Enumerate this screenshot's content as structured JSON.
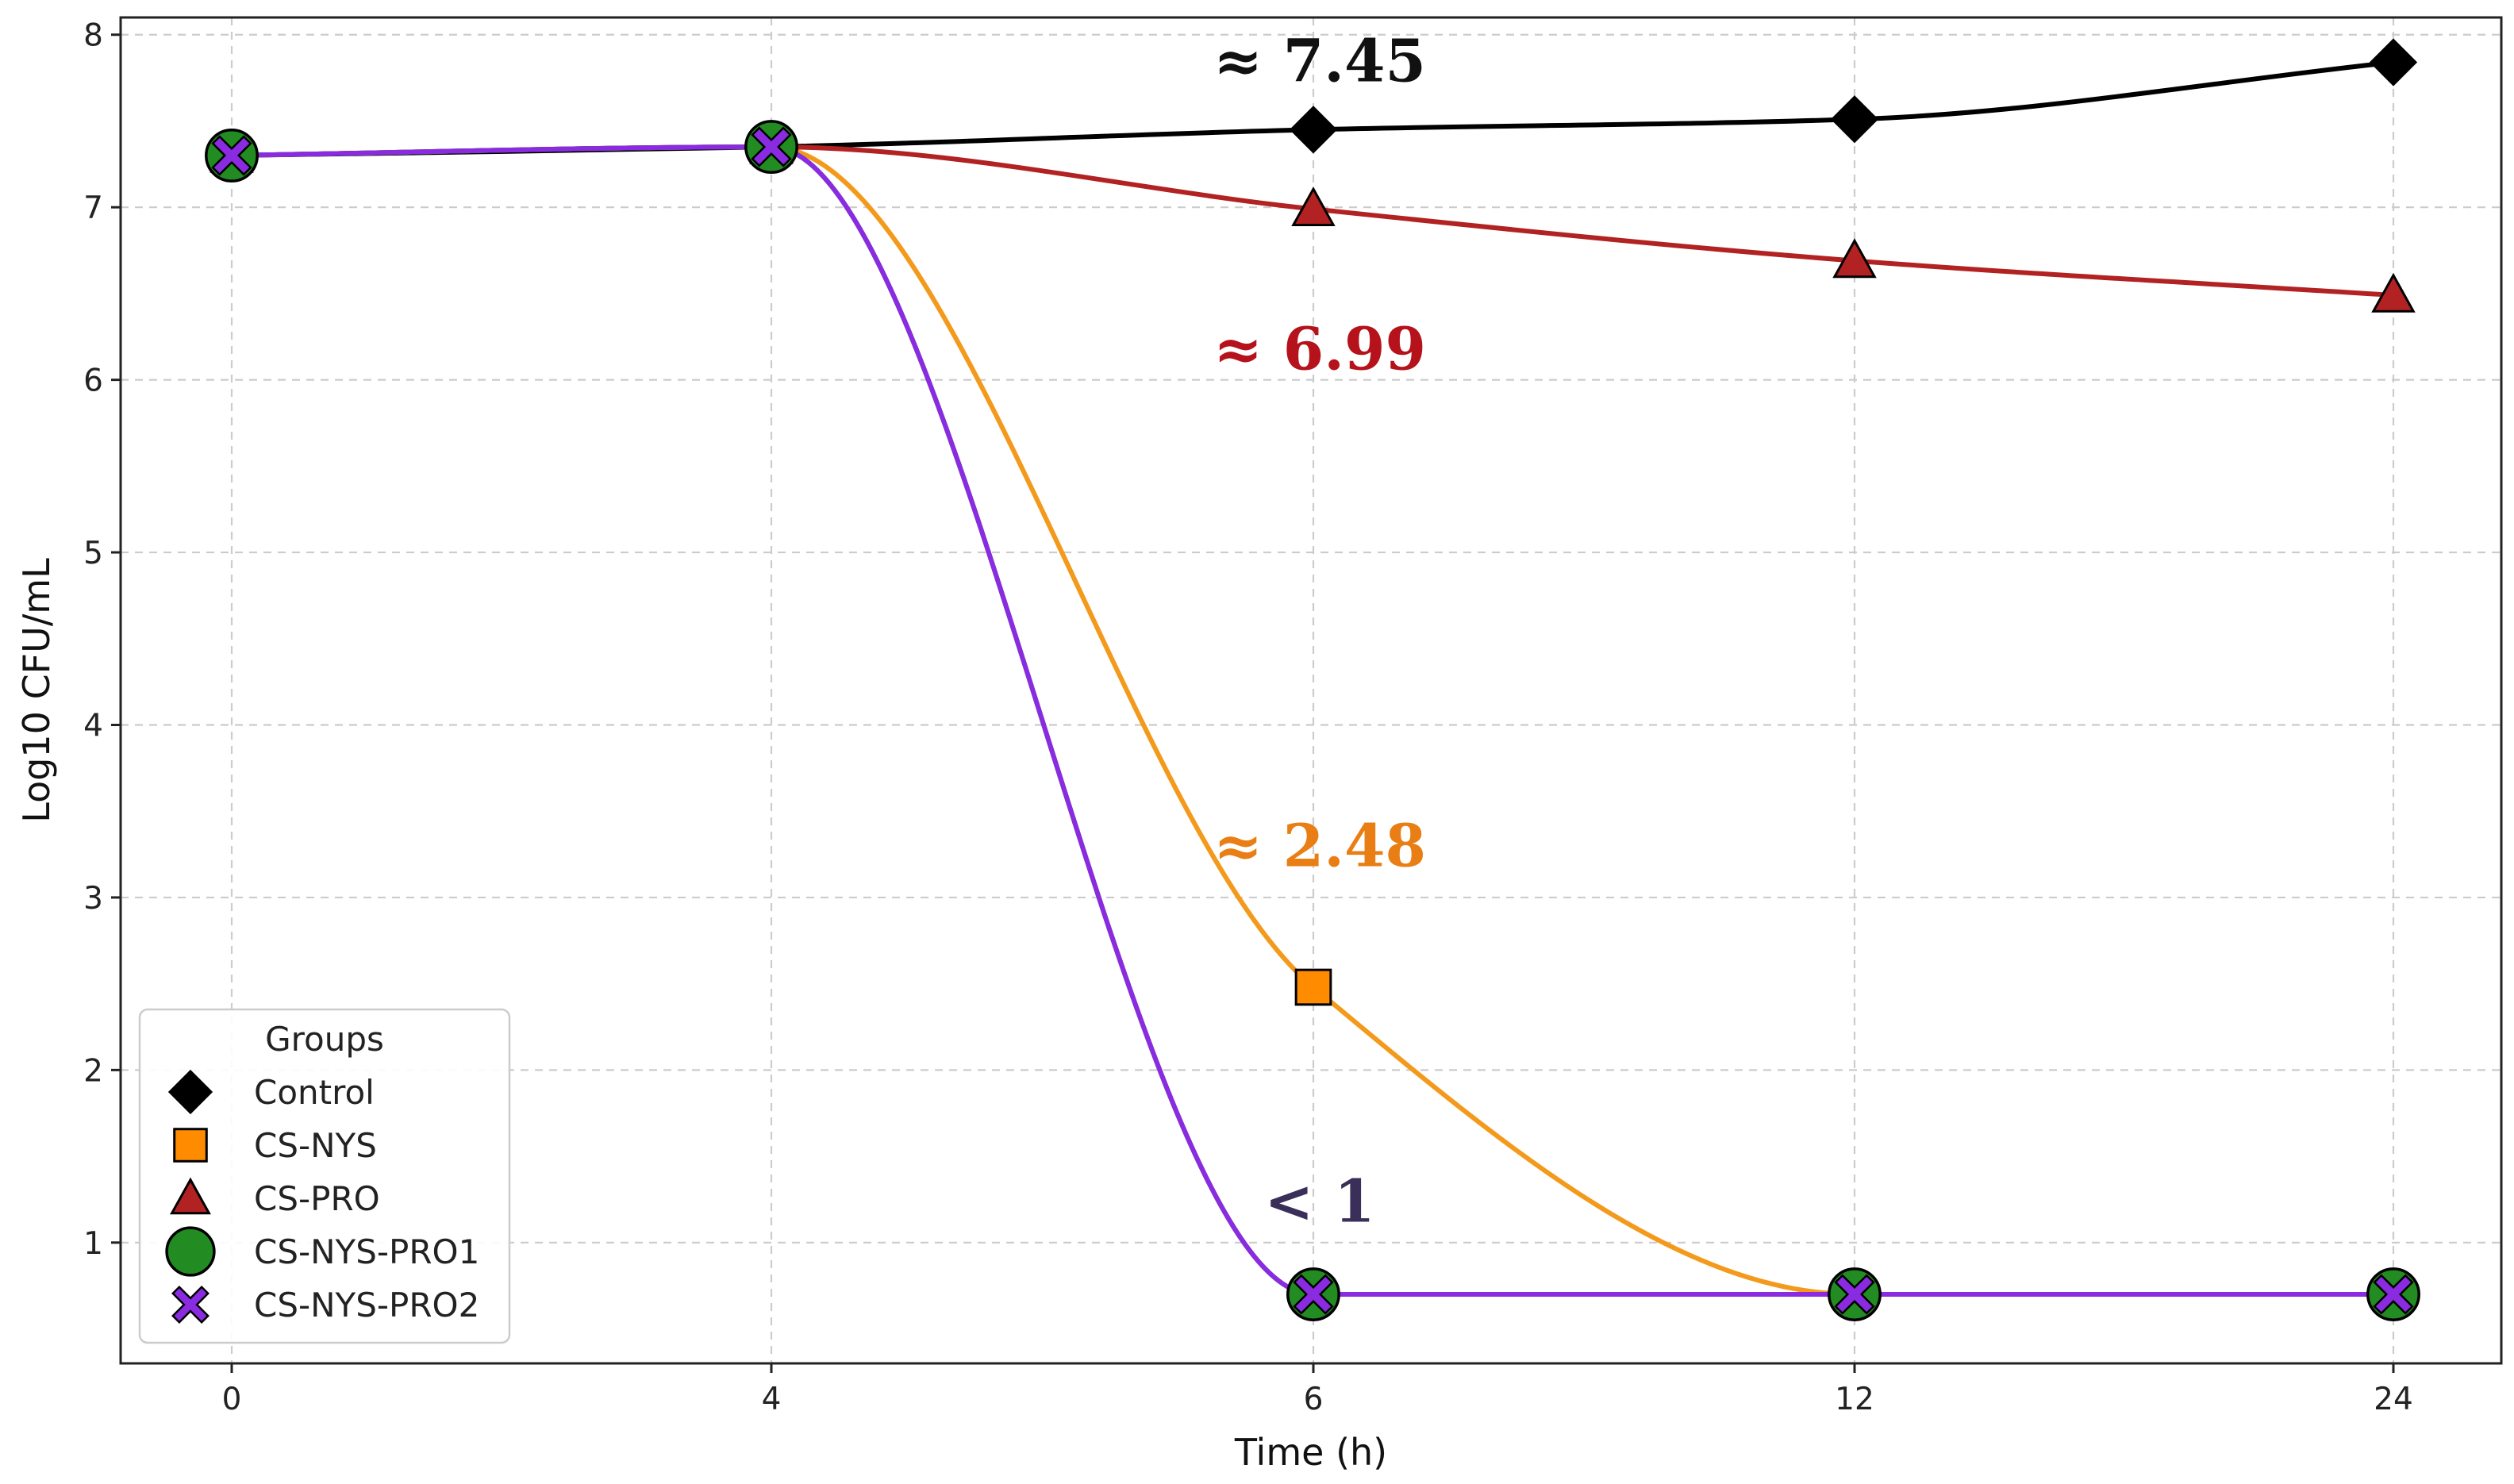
{
  "chart_data": {
    "type": "line",
    "title": "",
    "xlabel": "Time (h)",
    "ylabel": "Log10 CFU/mL",
    "categories": [
      "0",
      "4",
      "6",
      "12",
      "24"
    ],
    "ylim": [
      0.3,
      8.1
    ],
    "yticks": [
      1,
      2,
      3,
      4,
      5,
      6,
      7,
      8
    ],
    "grid": true,
    "legend": {
      "title": "Groups",
      "placement": "lower-left"
    },
    "series": [
      {
        "name": "Control",
        "color": "#000000",
        "line_color": "#000000",
        "marker": "diamond",
        "values": [
          7.3,
          7.35,
          7.45,
          7.51,
          7.84
        ]
      },
      {
        "name": "CS-NYS",
        "color": "#ff8c00",
        "line_color": "#f39a1c",
        "marker": "square",
        "values": [
          7.3,
          7.35,
          2.48,
          0.7,
          0.7
        ]
      },
      {
        "name": "CS-PRO",
        "color": "#b22222",
        "line_color": "#b22222",
        "marker": "triangle",
        "values": [
          7.3,
          7.35,
          6.99,
          6.69,
          6.49
        ]
      },
      {
        "name": "CS-NYS-PRO1",
        "color": "#228b22",
        "line_color": "#228b22",
        "marker": "circle",
        "values": [
          7.3,
          7.35,
          0.7,
          0.7,
          0.7
        ]
      },
      {
        "name": "CS-NYS-PRO2",
        "color": "#8a2be2",
        "line_color": "#8a2be2",
        "marker": "x",
        "values": [
          7.3,
          7.35,
          0.7,
          0.7,
          0.7
        ]
      }
    ],
    "annotations": [
      {
        "text": "≈ 7.45",
        "category": "6",
        "y": 7.85,
        "color": "#111111"
      },
      {
        "text": "≈ 6.99",
        "category": "6",
        "y": 6.18,
        "color": "#b5121b"
      },
      {
        "text": "≈ 2.48",
        "category": "6",
        "y": 3.3,
        "color": "#e87e14"
      },
      {
        "text": "< 1",
        "category": "6",
        "y": 1.24,
        "color": "#3a2f58"
      }
    ]
  }
}
